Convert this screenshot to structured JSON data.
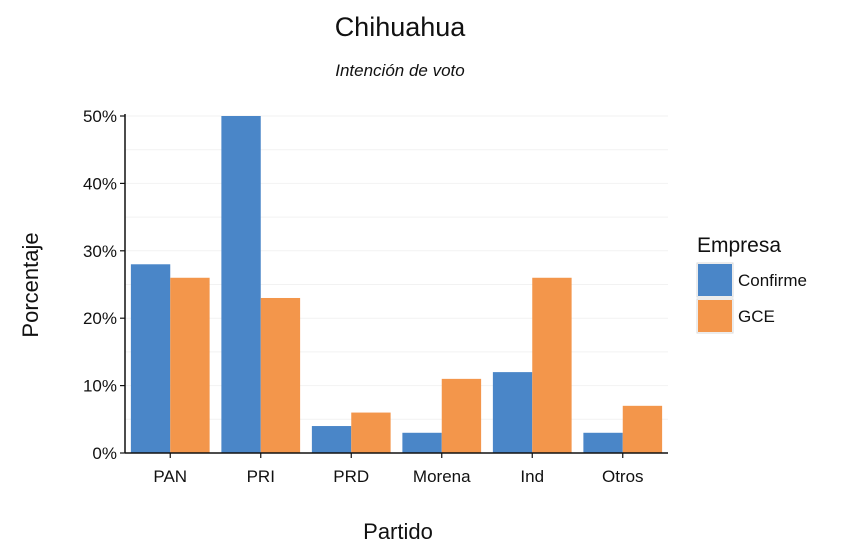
{
  "chart_data": {
    "type": "bar",
    "title": "Chihuahua",
    "subtitle": "Intención de voto",
    "xlabel": "Partido",
    "ylabel": "Porcentaje",
    "categories": [
      "PAN",
      "PRI",
      "PRD",
      "Morena",
      "Ind",
      "Otros"
    ],
    "series": [
      {
        "name": "Confirme",
        "color": "#4a86c8",
        "values": [
          28,
          50,
          4,
          3,
          12,
          3
        ]
      },
      {
        "name": "GCE",
        "color": "#f3964b",
        "values": [
          26,
          23,
          6,
          11,
          26,
          7
        ]
      }
    ],
    "ylim": [
      0,
      50
    ],
    "yticks": [
      0,
      10,
      20,
      30,
      40,
      50
    ],
    "ytick_labels": [
      "0%",
      "10%",
      "20%",
      "30%",
      "40%",
      "50%"
    ],
    "grid": true,
    "legend": {
      "title": "Empresa",
      "position": "right"
    }
  }
}
